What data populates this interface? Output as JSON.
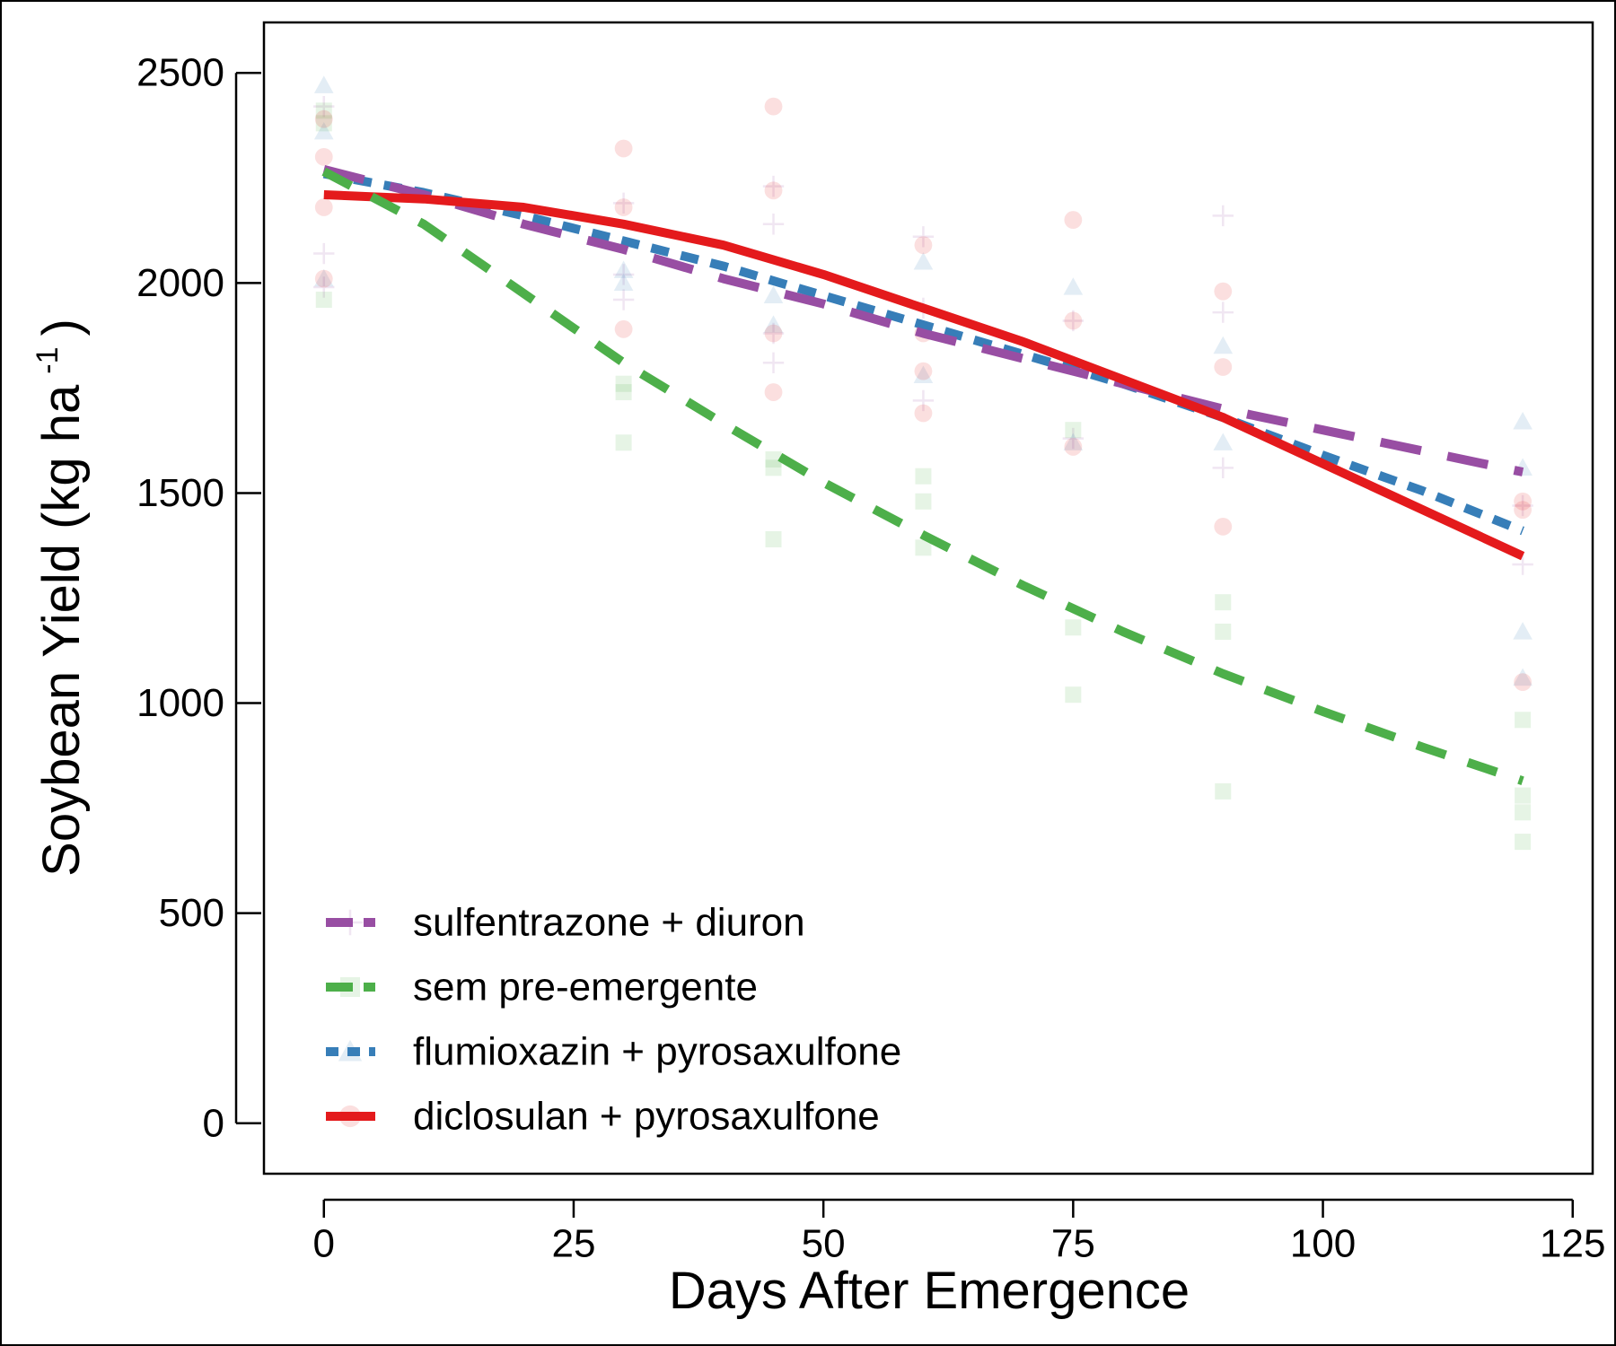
{
  "chart_data": {
    "type": "line",
    "xlabel": "Days After Emergence",
    "ylabel": "Soybean Yield (kg ha",
    "ylabel_superscript": "-1",
    "ylabel_close": ")",
    "xlim": [
      -6,
      127
    ],
    "ylim": [
      -120,
      2620
    ],
    "xticks": [
      0,
      25,
      50,
      75,
      100,
      125
    ],
    "yticks": [
      0,
      500,
      1000,
      1500,
      2000,
      2500
    ],
    "grid": false,
    "legend_position": "bottom-left",
    "series": [
      {
        "name": "sulfentrazone + diuron",
        "color": "#984ea3",
        "dash": "dash-long",
        "marker": "plus",
        "x": [
          0,
          10,
          20,
          30,
          40,
          50,
          60,
          70,
          80,
          90,
          100,
          110,
          120
        ],
        "y": [
          2270,
          2210,
          2140,
          2080,
          2010,
          1950,
          1880,
          1820,
          1760,
          1700,
          1650,
          1600,
          1550
        ],
        "points": [
          [
            0,
            2070
          ],
          [
            0,
            1990
          ],
          [
            0,
            2420
          ],
          [
            30,
            2190
          ],
          [
            30,
            1960
          ],
          [
            30,
            2020
          ],
          [
            45,
            2140
          ],
          [
            45,
            2230
          ],
          [
            45,
            1810
          ],
          [
            45,
            1880
          ],
          [
            60,
            2110
          ],
          [
            60,
            1940
          ],
          [
            60,
            1720
          ],
          [
            75,
            1910
          ],
          [
            75,
            1630
          ],
          [
            90,
            2160
          ],
          [
            90,
            1930
          ],
          [
            90,
            1560
          ],
          [
            120,
            1330
          ],
          [
            120,
            1470
          ]
        ]
      },
      {
        "name": "sem pre-emergente",
        "color": "#4daf4a",
        "dash": "dash",
        "marker": "square",
        "x": [
          0,
          10,
          20,
          30,
          40,
          50,
          60,
          70,
          80,
          90,
          100,
          110,
          120
        ],
        "y": [
          2265,
          2140,
          1975,
          1810,
          1665,
          1525,
          1400,
          1280,
          1170,
          1070,
          980,
          895,
          815
        ],
        "points": [
          [
            0,
            2410
          ],
          [
            0,
            1960
          ],
          [
            0,
            2380
          ],
          [
            30,
            1620
          ],
          [
            30,
            1740
          ],
          [
            30,
            1760
          ],
          [
            45,
            1390
          ],
          [
            45,
            1560
          ],
          [
            45,
            1580
          ],
          [
            60,
            1540
          ],
          [
            60,
            1480
          ],
          [
            60,
            1370
          ],
          [
            75,
            1020
          ],
          [
            75,
            1180
          ],
          [
            75,
            1650
          ],
          [
            90,
            790
          ],
          [
            90,
            1170
          ],
          [
            90,
            1240
          ],
          [
            120,
            670
          ],
          [
            120,
            740
          ],
          [
            120,
            960
          ],
          [
            120,
            780
          ]
        ]
      },
      {
        "name": "flumioxazin + pyrosaxulfone",
        "color": "#377eb8",
        "dash": "dash-short",
        "marker": "triangle",
        "x": [
          0,
          10,
          20,
          30,
          40,
          50,
          60,
          70,
          80,
          90,
          100,
          110,
          120
        ],
        "y": [
          2260,
          2215,
          2160,
          2100,
          2040,
          1970,
          1900,
          1830,
          1760,
          1680,
          1590,
          1505,
          1410
        ],
        "points": [
          [
            0,
            2470
          ],
          [
            0,
            2360
          ],
          [
            0,
            2010
          ],
          [
            30,
            2030
          ],
          [
            30,
            2000
          ],
          [
            45,
            1970
          ],
          [
            45,
            1900
          ],
          [
            60,
            2050
          ],
          [
            60,
            1780
          ],
          [
            75,
            1990
          ],
          [
            75,
            1620
          ],
          [
            90,
            1850
          ],
          [
            90,
            1620
          ],
          [
            120,
            1670
          ],
          [
            120,
            1560
          ],
          [
            120,
            1170
          ],
          [
            120,
            1060
          ]
        ]
      },
      {
        "name": "diclosulan + pyrosaxulfone",
        "color": "#e41a1c",
        "dash": "solid",
        "marker": "circle",
        "x": [
          0,
          10,
          20,
          30,
          40,
          50,
          60,
          70,
          80,
          90,
          100,
          110,
          120
        ],
        "y": [
          2210,
          2200,
          2180,
          2140,
          2090,
          2020,
          1940,
          1860,
          1770,
          1680,
          1570,
          1460,
          1350
        ],
        "points": [
          [
            0,
            2390
          ],
          [
            0,
            2300
          ],
          [
            0,
            2180
          ],
          [
            0,
            2010
          ],
          [
            30,
            2320
          ],
          [
            30,
            2180
          ],
          [
            30,
            1890
          ],
          [
            45,
            2420
          ],
          [
            45,
            2220
          ],
          [
            45,
            1740
          ],
          [
            45,
            1880
          ],
          [
            60,
            2090
          ],
          [
            60,
            1880
          ],
          [
            60,
            1790
          ],
          [
            60,
            1690
          ],
          [
            75,
            2150
          ],
          [
            75,
            1910
          ],
          [
            75,
            1610
          ],
          [
            90,
            1980
          ],
          [
            90,
            1800
          ],
          [
            90,
            1420
          ],
          [
            120,
            1480
          ],
          [
            120,
            1460
          ],
          [
            120,
            1050
          ]
        ]
      }
    ]
  }
}
